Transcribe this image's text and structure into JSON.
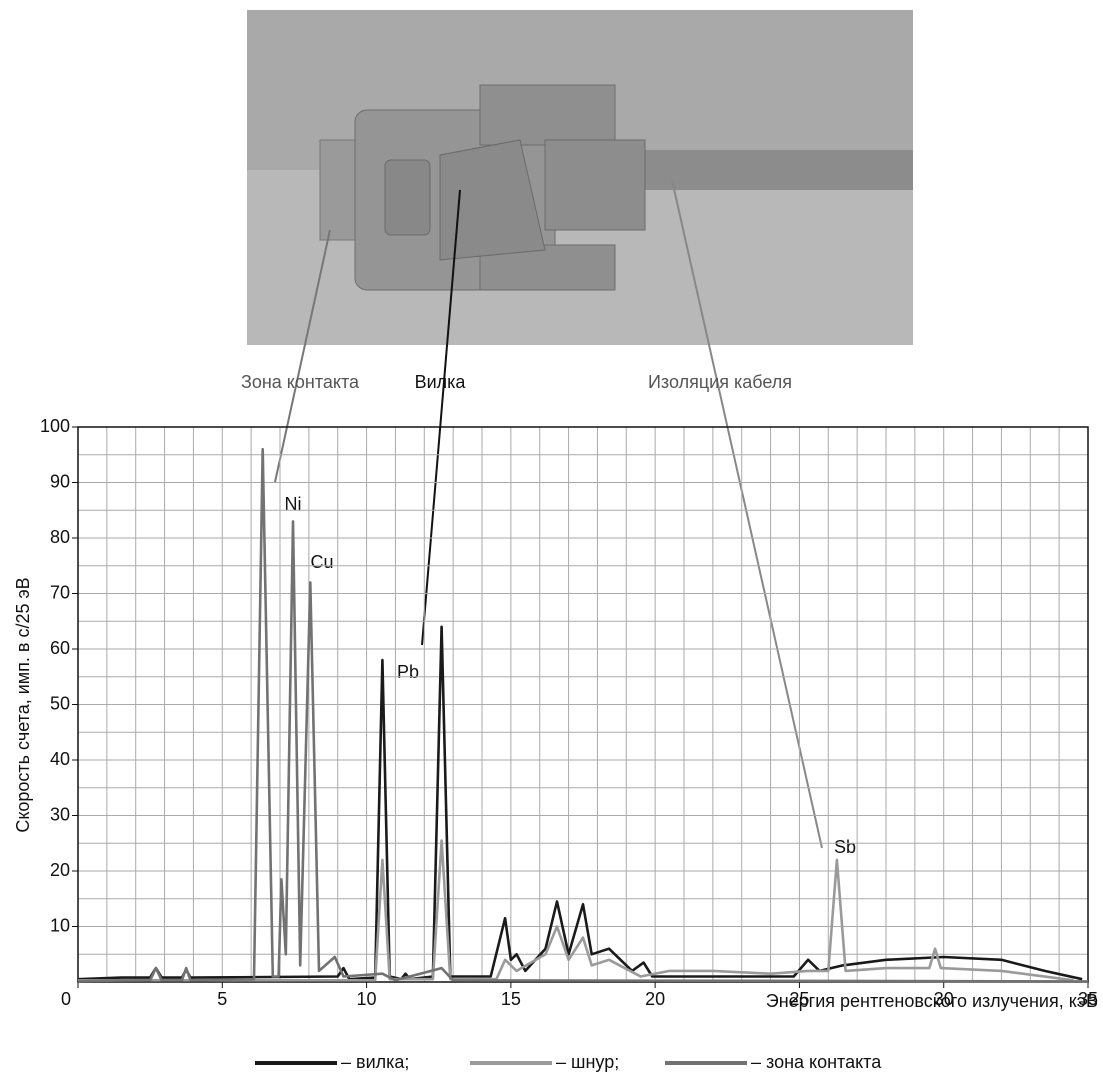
{
  "chart_data": {
    "type": "line",
    "annotations": [
      "Зона контакта",
      "Вилка",
      "Изоляция кабеля",
      "Ni",
      "Cu",
      "Pb",
      "Sb"
    ],
    "xlabel": "Энергия рентгеновского излучения, кэВ",
    "ylabel": "Скорость счета, имп. в с/25 эВ",
    "xlim": [
      0,
      35
    ],
    "ylim": [
      0,
      100
    ],
    "xticks": [
      0,
      5,
      10,
      15,
      20,
      25,
      30,
      35
    ],
    "yticks": [
      10,
      20,
      30,
      40,
      50,
      60,
      70,
      80,
      90,
      100
    ],
    "grid": true,
    "grid_x_step": 1,
    "grid_y_step": 5,
    "series": [
      {
        "name": "– вилка;",
        "color": "#1a1a1a",
        "x": [
          0,
          1.5,
          2.5,
          2.7,
          2.9,
          3.6,
          3.75,
          3.9,
          9,
          9.2,
          9.4,
          10.3,
          10.55,
          10.8,
          11.2,
          11.35,
          11.5,
          12.3,
          12.6,
          12.9,
          14.3,
          14.8,
          15.0,
          15.2,
          15.5,
          16.2,
          16.6,
          17.0,
          17.5,
          17.8,
          18.4,
          19.2,
          19.6,
          19.9,
          24.8,
          25.3,
          25.7,
          26.5,
          28,
          30,
          32,
          33.5,
          34.8
        ],
        "values": [
          0.5,
          0.8,
          0.8,
          2.5,
          0.8,
          0.8,
          2.2,
          0.8,
          1,
          2.5,
          0.5,
          0.8,
          58,
          1,
          0.5,
          1.5,
          0.5,
          1,
          64,
          1,
          1,
          11.5,
          4,
          5,
          2,
          6,
          14.5,
          5,
          14,
          5,
          6,
          2,
          3.5,
          1,
          1,
          4,
          2,
          3,
          4,
          4.5,
          4,
          2,
          0.5
        ]
      },
      {
        "name": "– шнур;",
        "color": "#9a9a9a",
        "x": [
          0,
          10.3,
          10.55,
          10.8,
          12.3,
          12.6,
          12.9,
          14.5,
          14.8,
          15.2,
          16.2,
          16.6,
          17.0,
          17.5,
          17.8,
          18.4,
          19.5,
          20.5,
          22,
          24,
          25.3,
          26.0,
          26.3,
          26.6,
          28,
          29.5,
          29.7,
          29.9,
          32,
          34.5
        ],
        "values": [
          0.3,
          0.3,
          22,
          0.5,
          0.5,
          25.5,
          0.5,
          0.5,
          4,
          2,
          5,
          10,
          4,
          8,
          3,
          4,
          1,
          2,
          2,
          1.5,
          2,
          2,
          22,
          2,
          2.5,
          2.5,
          6,
          2.5,
          2,
          0.3
        ]
      },
      {
        "name": "– зона контакта",
        "color": "#727272",
        "x": [
          0,
          2.5,
          2.7,
          2.9,
          3.6,
          3.75,
          3.9,
          6.1,
          6.4,
          6.75,
          6.95,
          7.05,
          7.2,
          7.45,
          7.7,
          8.05,
          8.35,
          8.9,
          9.2,
          10.55,
          11,
          12.6,
          13,
          35
        ],
        "values": [
          0.2,
          0.3,
          2.5,
          0.3,
          0.3,
          2.5,
          0.3,
          0.5,
          96,
          1,
          1,
          18.5,
          5,
          83,
          3,
          72,
          2,
          4.5,
          1,
          1.5,
          0.3,
          2.5,
          0.3,
          0.1
        ]
      }
    ]
  }
}
